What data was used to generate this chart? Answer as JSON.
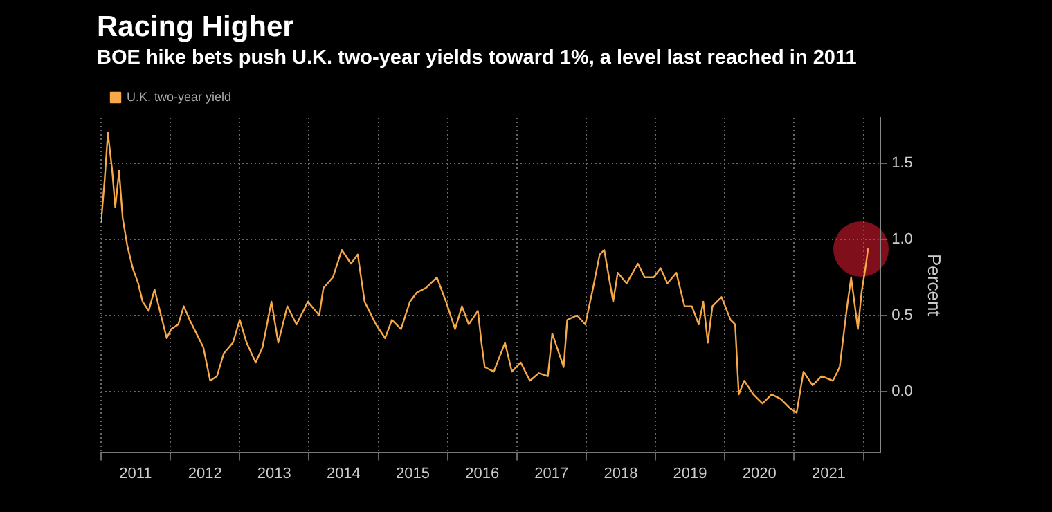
{
  "chart_data": {
    "type": "line",
    "title": "Racing Higher",
    "subtitle": "BOE hike bets push U.K. two-year yields toward 1%, a level last reached in 2011",
    "ylabel": "Percent",
    "xlim": [
      "2011-01-01",
      "2022-04-01"
    ],
    "xticks": [
      {
        "value": "2011-01-01",
        "label": null
      },
      {
        "value": "2011-07-02",
        "label": "2011"
      },
      {
        "value": "2012-01-01",
        "label": null
      },
      {
        "value": "2012-07-02",
        "label": "2012"
      },
      {
        "value": "2013-01-01",
        "label": null
      },
      {
        "value": "2013-07-02",
        "label": "2013"
      },
      {
        "value": "2014-01-01",
        "label": null
      },
      {
        "value": "2014-07-02",
        "label": "2014"
      },
      {
        "value": "2015-01-01",
        "label": null
      },
      {
        "value": "2015-07-02",
        "label": "2015"
      },
      {
        "value": "2016-01-01",
        "label": null
      },
      {
        "value": "2016-07-02",
        "label": "2016"
      },
      {
        "value": "2017-01-01",
        "label": null
      },
      {
        "value": "2017-07-02",
        "label": "2017"
      },
      {
        "value": "2018-01-01",
        "label": null
      },
      {
        "value": "2018-07-02",
        "label": "2018"
      },
      {
        "value": "2019-01-01",
        "label": null
      },
      {
        "value": "2019-07-02",
        "label": "2019"
      },
      {
        "value": "2020-01-01",
        "label": null
      },
      {
        "value": "2020-07-02",
        "label": "2020"
      },
      {
        "value": "2021-01-01",
        "label": null
      },
      {
        "value": "2021-07-02",
        "label": "2021"
      },
      {
        "value": "2022-01-01",
        "label": null
      }
    ],
    "ylim": [
      -0.4,
      1.8
    ],
    "yticks": [
      {
        "value": 0,
        "label": "0.0"
      },
      {
        "value": 0.5,
        "label": "0.5"
      },
      {
        "value": 1,
        "label": "1.0"
      },
      {
        "value": 1.5,
        "label": "1.5"
      }
    ],
    "grid": true,
    "legend": "top left",
    "marker": "none",
    "line_style": "solid",
    "x": [
      "2011-01-01",
      "2011-01-20",
      "2011-02-06",
      "2011-03-01",
      "2011-03-17",
      "2011-04-06",
      "2011-04-25",
      "2011-05-19",
      "2011-06-17",
      "2011-07-16",
      "2011-08-08",
      "2011-09-09",
      "2011-10-10",
      "2011-11-07",
      "2011-12-13",
      "2012-01-06",
      "2012-02-12",
      "2012-03-12",
      "2012-04-12",
      "2012-05-18",
      "2012-06-23",
      "2012-07-29",
      "2012-09-03",
      "2012-10-09",
      "2012-11-26",
      "2013-01-01",
      "2013-02-06",
      "2013-03-26",
      "2013-05-01",
      "2013-06-17",
      "2013-07-23",
      "2013-09-09",
      "2013-10-27",
      "2013-12-26",
      "2014-02-24",
      "2014-03-18",
      "2014-05-07",
      "2014-06-23",
      "2014-08-10",
      "2014-09-15",
      "2014-10-21",
      "2014-12-20",
      "2015-02-06",
      "2015-03-14",
      "2015-05-01",
      "2015-06-17",
      "2015-07-23",
      "2015-09-09",
      "2015-11-06",
      "2015-12-24",
      "2016-02-10",
      "2016-03-17",
      "2016-04-22",
      "2016-06-09",
      "2016-06-28",
      "2016-07-15",
      "2016-09-01",
      "2016-10-30",
      "2016-12-05",
      "2017-01-21",
      "2017-03-10",
      "2017-04-26",
      "2017-06-13",
      "2017-07-06",
      "2017-09-04",
      "2017-09-23",
      "2017-11-14",
      "2017-12-27",
      "2018-02-06",
      "2018-03-13",
      "2018-04-06",
      "2018-05-23",
      "2018-06-16",
      "2018-08-02",
      "2018-09-30",
      "2018-11-05",
      "2018-12-23",
      "2019-01-28",
      "2019-03-05",
      "2019-04-21",
      "2019-06-03",
      "2019-07-12",
      "2019-08-17",
      "2019-09-10",
      "2019-10-04",
      "2019-10-28",
      "2019-12-15",
      "2020-02-01",
      "2020-02-25",
      "2020-03-15",
      "2020-04-13",
      "2020-05-31",
      "2020-07-18",
      "2020-09-04",
      "2020-10-22",
      "2020-12-09",
      "2021-01-14",
      "2021-02-19",
      "2021-04-08",
      "2021-05-26",
      "2021-07-24",
      "2021-08-29",
      "2021-10-04",
      "2021-10-28",
      "2021-12-03",
      "2021-12-22",
      "2022-01-15",
      "2022-01-25"
    ],
    "series": [
      {
        "name": "U.K. two-year yield",
        "color": "#f7a94a",
        "values": [
          1.11,
          1.39,
          1.7,
          1.45,
          1.21,
          1.45,
          1.14,
          0.96,
          0.81,
          0.71,
          0.59,
          0.53,
          0.67,
          0.53,
          0.35,
          0.41,
          0.44,
          0.56,
          0.47,
          0.38,
          0.29,
          0.07,
          0.1,
          0.25,
          0.32,
          0.47,
          0.32,
          0.19,
          0.29,
          0.59,
          0.32,
          0.56,
          0.44,
          0.59,
          0.5,
          0.68,
          0.75,
          0.93,
          0.84,
          0.9,
          0.59,
          0.44,
          0.35,
          0.47,
          0.41,
          0.59,
          0.65,
          0.68,
          0.75,
          0.59,
          0.41,
          0.56,
          0.44,
          0.53,
          0.32,
          0.16,
          0.13,
          0.32,
          0.13,
          0.19,
          0.07,
          0.12,
          0.1,
          0.38,
          0.16,
          0.47,
          0.5,
          0.44,
          0.68,
          0.9,
          0.93,
          0.59,
          0.78,
          0.71,
          0.84,
          0.75,
          0.75,
          0.81,
          0.71,
          0.78,
          0.56,
          0.56,
          0.44,
          0.59,
          0.32,
          0.56,
          0.62,
          0.47,
          0.44,
          -0.02,
          0.07,
          -0.02,
          -0.08,
          -0.02,
          -0.05,
          -0.11,
          -0.14,
          0.13,
          0.04,
          0.1,
          0.07,
          0.16,
          0.53,
          0.75,
          0.41,
          0.65,
          0.84,
          0.94
        ]
      }
    ]
  }
}
